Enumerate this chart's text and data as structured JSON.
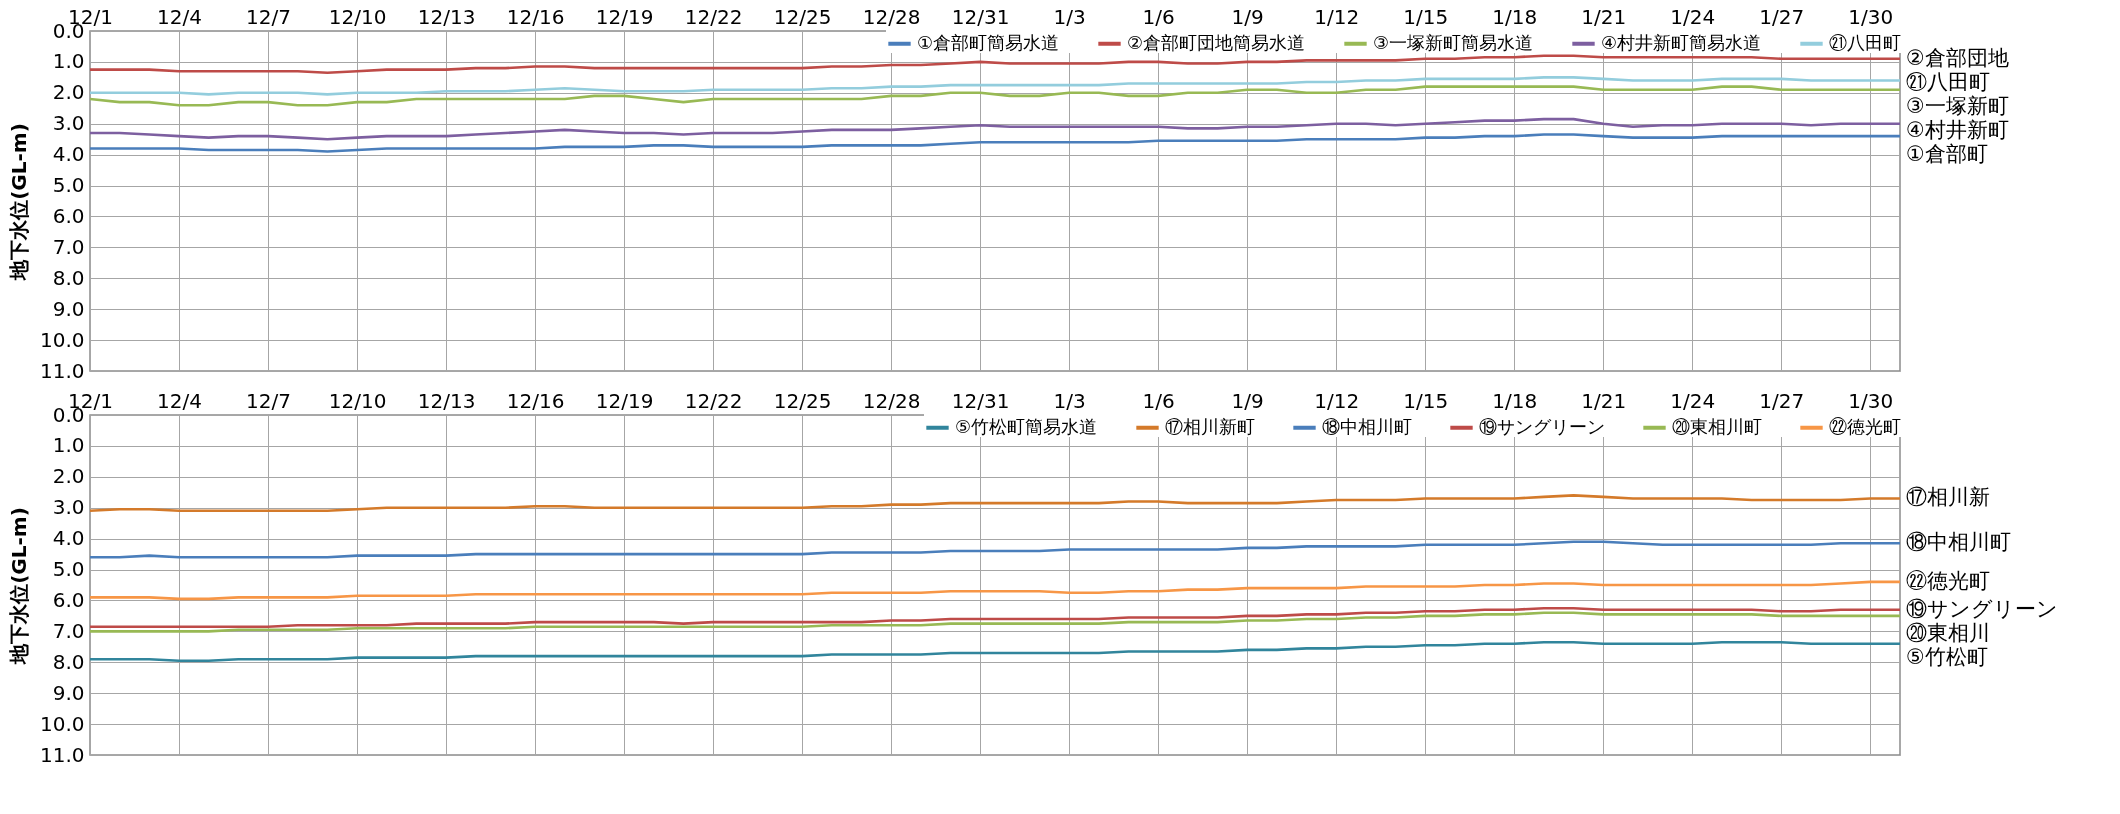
{
  "chart_data": [
    {
      "type": "line",
      "ylabel": "地下水位(GL-m)",
      "legend": "top right",
      "grid": true,
      "categories": [
        "12/1",
        null,
        null,
        "12/4",
        null,
        null,
        "12/7",
        null,
        null,
        "12/10",
        null,
        null,
        "12/13",
        null,
        null,
        "12/16",
        null,
        null,
        "12/19",
        null,
        null,
        "12/22",
        null,
        null,
        "12/25",
        null,
        null,
        "12/28",
        null,
        null,
        "12/31",
        null,
        null,
        "1/3",
        null,
        null,
        "1/6",
        null,
        null,
        "1/9",
        null,
        null,
        "1/12",
        null,
        null,
        "1/15",
        null,
        null,
        "1/18",
        null,
        null,
        "1/21",
        null,
        null,
        "1/24",
        null,
        null,
        "1/27",
        null,
        null,
        "1/30",
        null
      ],
      "ylim": [
        11,
        0
      ],
      "yticks": [
        {
          "value": 0,
          "label": "0.0"
        },
        {
          "value": 1,
          "label": "1.0"
        },
        {
          "value": 2,
          "label": "2.0"
        },
        {
          "value": 3,
          "label": "3.0"
        },
        {
          "value": 4,
          "label": "4.0"
        },
        {
          "value": 5,
          "label": "5.0"
        },
        {
          "value": 6,
          "label": "6.0"
        },
        {
          "value": 7,
          "label": "7.0"
        },
        {
          "value": 8,
          "label": "8.0"
        },
        {
          "value": 9,
          "label": "9.0"
        },
        {
          "value": 10,
          "label": "10.0"
        },
        {
          "value": 11,
          "label": "11.0"
        }
      ],
      "series": [
        {
          "name": "①倉部町簡易水道",
          "color": "#4a7ebb",
          "values": [
            3.8,
            3.8,
            3.8,
            3.8,
            3.85,
            3.85,
            3.85,
            3.85,
            3.9,
            3.85,
            3.8,
            3.8,
            3.8,
            3.8,
            3.8,
            3.8,
            3.75,
            3.75,
            3.75,
            3.7,
            3.7,
            3.75,
            3.75,
            3.75,
            3.75,
            3.7,
            3.7,
            3.7,
            3.7,
            3.65,
            3.6,
            3.6,
            3.6,
            3.6,
            3.6,
            3.6,
            3.55,
            3.55,
            3.55,
            3.55,
            3.55,
            3.5,
            3.5,
            3.5,
            3.5,
            3.45,
            3.45,
            3.4,
            3.4,
            3.35,
            3.35,
            3.4,
            3.45,
            3.45,
            3.45,
            3.4,
            3.4,
            3.4,
            3.4,
            3.4,
            3.4,
            3.4
          ]
        },
        {
          "name": "②倉部町団地簡易水道",
          "color": "#be4b48",
          "values": [
            1.25,
            1.25,
            1.25,
            1.3,
            1.3,
            1.3,
            1.3,
            1.3,
            1.35,
            1.3,
            1.25,
            1.25,
            1.25,
            1.2,
            1.2,
            1.15,
            1.15,
            1.2,
            1.2,
            1.2,
            1.2,
            1.2,
            1.2,
            1.2,
            1.2,
            1.15,
            1.15,
            1.1,
            1.1,
            1.05,
            1.0,
            1.05,
            1.05,
            1.05,
            1.05,
            1.0,
            1.0,
            1.05,
            1.05,
            1.0,
            1.0,
            0.95,
            0.95,
            0.95,
            0.95,
            0.9,
            0.9,
            0.85,
            0.85,
            0.8,
            0.8,
            0.85,
            0.85,
            0.85,
            0.85,
            0.85,
            0.85,
            0.9,
            0.9,
            0.9,
            0.9,
            0.9
          ]
        },
        {
          "name": "③一塚新町簡易水道",
          "color": "#98b954",
          "values": [
            2.2,
            2.3,
            2.3,
            2.4,
            2.4,
            2.3,
            2.3,
            2.4,
            2.4,
            2.3,
            2.3,
            2.2,
            2.2,
            2.2,
            2.2,
            2.2,
            2.2,
            2.1,
            2.1,
            2.2,
            2.3,
            2.2,
            2.2,
            2.2,
            2.2,
            2.2,
            2.2,
            2.1,
            2.1,
            2.0,
            2.0,
            2.1,
            2.1,
            2.0,
            2.0,
            2.1,
            2.1,
            2.0,
            2.0,
            1.9,
            1.9,
            2.0,
            2.0,
            1.9,
            1.9,
            1.8,
            1.8,
            1.8,
            1.8,
            1.8,
            1.8,
            1.9,
            1.9,
            1.9,
            1.9,
            1.8,
            1.8,
            1.9,
            1.9,
            1.9,
            1.9,
            1.9
          ]
        },
        {
          "name": "④村井新町簡易水道",
          "color": "#7d5fa0",
          "values": [
            3.3,
            3.3,
            3.35,
            3.4,
            3.45,
            3.4,
            3.4,
            3.45,
            3.5,
            3.45,
            3.4,
            3.4,
            3.4,
            3.35,
            3.3,
            3.25,
            3.2,
            3.25,
            3.3,
            3.3,
            3.35,
            3.3,
            3.3,
            3.3,
            3.25,
            3.2,
            3.2,
            3.2,
            3.15,
            3.1,
            3.05,
            3.1,
            3.1,
            3.1,
            3.1,
            3.1,
            3.1,
            3.15,
            3.15,
            3.1,
            3.1,
            3.05,
            3.0,
            3.0,
            3.05,
            3.0,
            2.95,
            2.9,
            2.9,
            2.85,
            2.85,
            3.0,
            3.1,
            3.05,
            3.05,
            3.0,
            3.0,
            3.0,
            3.05,
            3.0,
            3.0,
            3.0
          ]
        },
        {
          "name": "㉑八田町",
          "color": "#93cddd",
          "values": [
            2.0,
            2.0,
            2.0,
            2.0,
            2.05,
            2.0,
            2.0,
            2.0,
            2.05,
            2.0,
            2.0,
            2.0,
            1.95,
            1.95,
            1.95,
            1.9,
            1.85,
            1.9,
            1.95,
            1.95,
            1.95,
            1.9,
            1.9,
            1.9,
            1.9,
            1.85,
            1.85,
            1.8,
            1.8,
            1.75,
            1.75,
            1.75,
            1.75,
            1.75,
            1.75,
            1.7,
            1.7,
            1.7,
            1.7,
            1.7,
            1.7,
            1.65,
            1.65,
            1.6,
            1.6,
            1.55,
            1.55,
            1.55,
            1.55,
            1.5,
            1.5,
            1.55,
            1.6,
            1.6,
            1.6,
            1.55,
            1.55,
            1.55,
            1.6,
            1.6,
            1.6,
            1.6
          ]
        }
      ],
      "annotations": [
        "②倉部団地",
        "㉑八田町",
        "③一塚新町",
        "④村井新町",
        "①倉部町"
      ]
    },
    {
      "type": "line",
      "ylabel": "地下水位(GL-m)",
      "legend": "top right",
      "grid": true,
      "categories": [
        "12/1",
        null,
        null,
        "12/4",
        null,
        null,
        "12/7",
        null,
        null,
        "12/10",
        null,
        null,
        "12/13",
        null,
        null,
        "12/16",
        null,
        null,
        "12/19",
        null,
        null,
        "12/22",
        null,
        null,
        "12/25",
        null,
        null,
        "12/28",
        null,
        null,
        "12/31",
        null,
        null,
        "1/3",
        null,
        null,
        "1/6",
        null,
        null,
        "1/9",
        null,
        null,
        "1/12",
        null,
        null,
        "1/15",
        null,
        null,
        "1/18",
        null,
        null,
        "1/21",
        null,
        null,
        "1/24",
        null,
        null,
        "1/27",
        null,
        null,
        "1/30",
        null
      ],
      "ylim": [
        11,
        0
      ],
      "yticks": [
        {
          "value": 0,
          "label": "0.0"
        },
        {
          "value": 1,
          "label": "1.0"
        },
        {
          "value": 2,
          "label": "2.0"
        },
        {
          "value": 3,
          "label": "3.0"
        },
        {
          "value": 4,
          "label": "4.0"
        },
        {
          "value": 5,
          "label": "5.0"
        },
        {
          "value": 6,
          "label": "6.0"
        },
        {
          "value": 7,
          "label": "7.0"
        },
        {
          "value": 8,
          "label": "8.0"
        },
        {
          "value": 9,
          "label": "9.0"
        },
        {
          "value": 10,
          "label": "10.0"
        },
        {
          "value": 11,
          "label": "11.0"
        }
      ],
      "series": [
        {
          "name": "⑤竹松町簡易水道",
          "color": "#31859c",
          "values": [
            7.9,
            7.9,
            7.9,
            7.95,
            7.95,
            7.9,
            7.9,
            7.9,
            7.9,
            7.85,
            7.85,
            7.85,
            7.85,
            7.8,
            7.8,
            7.8,
            7.8,
            7.8,
            7.8,
            7.8,
            7.8,
            7.8,
            7.8,
            7.8,
            7.8,
            7.75,
            7.75,
            7.75,
            7.75,
            7.7,
            7.7,
            7.7,
            7.7,
            7.7,
            7.7,
            7.65,
            7.65,
            7.65,
            7.65,
            7.6,
            7.6,
            7.55,
            7.55,
            7.5,
            7.5,
            7.45,
            7.45,
            7.4,
            7.4,
            7.35,
            7.35,
            7.4,
            7.4,
            7.4,
            7.4,
            7.35,
            7.35,
            7.35,
            7.4,
            7.4,
            7.4,
            7.4
          ]
        },
        {
          "name": "⑰相川新町",
          "color": "#d47a2a",
          "values": [
            3.1,
            3.05,
            3.05,
            3.1,
            3.1,
            3.1,
            3.1,
            3.1,
            3.1,
            3.05,
            3.0,
            3.0,
            3.0,
            3.0,
            3.0,
            2.95,
            2.95,
            3.0,
            3.0,
            3.0,
            3.0,
            3.0,
            3.0,
            3.0,
            3.0,
            2.95,
            2.95,
            2.9,
            2.9,
            2.85,
            2.85,
            2.85,
            2.85,
            2.85,
            2.85,
            2.8,
            2.8,
            2.85,
            2.85,
            2.85,
            2.85,
            2.8,
            2.75,
            2.75,
            2.75,
            2.7,
            2.7,
            2.7,
            2.7,
            2.65,
            2.6,
            2.65,
            2.7,
            2.7,
            2.7,
            2.7,
            2.75,
            2.75,
            2.75,
            2.75,
            2.7,
            2.7
          ]
        },
        {
          "name": "⑱中相川町",
          "color": "#4a7ebb",
          "values": [
            4.6,
            4.6,
            4.55,
            4.6,
            4.6,
            4.6,
            4.6,
            4.6,
            4.6,
            4.55,
            4.55,
            4.55,
            4.55,
            4.5,
            4.5,
            4.5,
            4.5,
            4.5,
            4.5,
            4.5,
            4.5,
            4.5,
            4.5,
            4.5,
            4.5,
            4.45,
            4.45,
            4.45,
            4.45,
            4.4,
            4.4,
            4.4,
            4.4,
            4.35,
            4.35,
            4.35,
            4.35,
            4.35,
            4.35,
            4.3,
            4.3,
            4.25,
            4.25,
            4.25,
            4.25,
            4.2,
            4.2,
            4.2,
            4.2,
            4.15,
            4.1,
            4.1,
            4.15,
            4.2,
            4.2,
            4.2,
            4.2,
            4.2,
            4.2,
            4.15,
            4.15,
            4.15
          ]
        },
        {
          "name": "⑲サングリーン",
          "color": "#be4b48",
          "values": [
            6.85,
            6.85,
            6.85,
            6.85,
            6.85,
            6.85,
            6.85,
            6.8,
            6.8,
            6.8,
            6.8,
            6.75,
            6.75,
            6.75,
            6.75,
            6.7,
            6.7,
            6.7,
            6.7,
            6.7,
            6.75,
            6.7,
            6.7,
            6.7,
            6.7,
            6.7,
            6.7,
            6.65,
            6.65,
            6.6,
            6.6,
            6.6,
            6.6,
            6.6,
            6.6,
            6.55,
            6.55,
            6.55,
            6.55,
            6.5,
            6.5,
            6.45,
            6.45,
            6.4,
            6.4,
            6.35,
            6.35,
            6.3,
            6.3,
            6.25,
            6.25,
            6.3,
            6.3,
            6.3,
            6.3,
            6.3,
            6.3,
            6.35,
            6.35,
            6.3,
            6.3,
            6.3
          ]
        },
        {
          "name": "⑳東相川町",
          "color": "#98b954",
          "values": [
            7.0,
            7.0,
            7.0,
            7.0,
            7.0,
            6.95,
            6.95,
            6.95,
            6.95,
            6.9,
            6.9,
            6.9,
            6.9,
            6.9,
            6.9,
            6.85,
            6.85,
            6.85,
            6.85,
            6.85,
            6.85,
            6.85,
            6.85,
            6.85,
            6.85,
            6.8,
            6.8,
            6.8,
            6.8,
            6.75,
            6.75,
            6.75,
            6.75,
            6.75,
            6.75,
            6.7,
            6.7,
            6.7,
            6.7,
            6.65,
            6.65,
            6.6,
            6.6,
            6.55,
            6.55,
            6.5,
            6.5,
            6.45,
            6.45,
            6.4,
            6.4,
            6.45,
            6.45,
            6.45,
            6.45,
            6.45,
            6.45,
            6.5,
            6.5,
            6.5,
            6.5,
            6.5
          ]
        },
        {
          "name": "㉒徳光町",
          "color": "#f79646",
          "values": [
            5.9,
            5.9,
            5.9,
            5.95,
            5.95,
            5.9,
            5.9,
            5.9,
            5.9,
            5.85,
            5.85,
            5.85,
            5.85,
            5.8,
            5.8,
            5.8,
            5.8,
            5.8,
            5.8,
            5.8,
            5.8,
            5.8,
            5.8,
            5.8,
            5.8,
            5.75,
            5.75,
            5.75,
            5.75,
            5.7,
            5.7,
            5.7,
            5.7,
            5.75,
            5.75,
            5.7,
            5.7,
            5.65,
            5.65,
            5.6,
            5.6,
            5.6,
            5.6,
            5.55,
            5.55,
            5.55,
            5.55,
            5.5,
            5.5,
            5.45,
            5.45,
            5.5,
            5.5,
            5.5,
            5.5,
            5.5,
            5.5,
            5.5,
            5.5,
            5.45,
            5.4,
            5.4
          ]
        }
      ],
      "annotations": [
        "⑰相川新",
        "⑱中相川町",
        "㉒徳光町",
        "⑲サングリーン",
        "⑳東相川",
        "⑤竹松町"
      ]
    }
  ]
}
